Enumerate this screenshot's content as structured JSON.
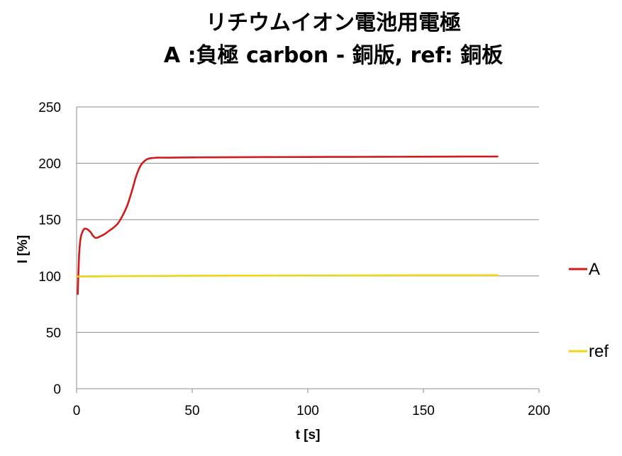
{
  "chart_data": {
    "type": "line",
    "title": "リチウムイオン電池用電極",
    "subtitle": "A :負極 carbon - 銅版,  ref: 銅板",
    "xlabel": "t [s]",
    "ylabel": "I [%]",
    "xlim": [
      0,
      200
    ],
    "ylim": [
      0,
      250
    ],
    "x_ticks": [
      0,
      50,
      100,
      150,
      200
    ],
    "y_ticks": [
      0,
      50,
      100,
      150,
      200,
      250
    ],
    "grid": "horizontal",
    "legend_position": "right",
    "series": [
      {
        "name": "A",
        "color": "#d11a1a",
        "x": [
          0.5,
          1,
          1.5,
          2,
          2.5,
          3,
          3.5,
          4,
          5,
          6,
          7,
          8,
          9,
          10,
          12,
          14,
          16,
          18,
          20,
          22,
          24,
          26,
          28,
          30,
          31,
          32,
          33,
          35,
          40,
          50,
          60,
          80,
          100,
          120,
          140,
          160,
          170,
          182
        ],
        "y": [
          84,
          115,
          130,
          136,
          139,
          141,
          142,
          142,
          141,
          139,
          136,
          134,
          134,
          135,
          137,
          140,
          143,
          147,
          154,
          163,
          176,
          190,
          199,
          203,
          204,
          204.5,
          204.7,
          205,
          205,
          205.2,
          205.3,
          205.5,
          205.6,
          205.7,
          205.8,
          205.9,
          206,
          206
        ]
      },
      {
        "name": "ref",
        "color": "#f2d21b",
        "x": [
          0,
          5,
          10,
          20,
          30,
          50,
          80,
          100,
          150,
          182
        ],
        "y": [
          99.5,
          99.6,
          99.7,
          99.9,
          100,
          100.2,
          100.4,
          100.5,
          100.6,
          100.7
        ]
      }
    ]
  }
}
